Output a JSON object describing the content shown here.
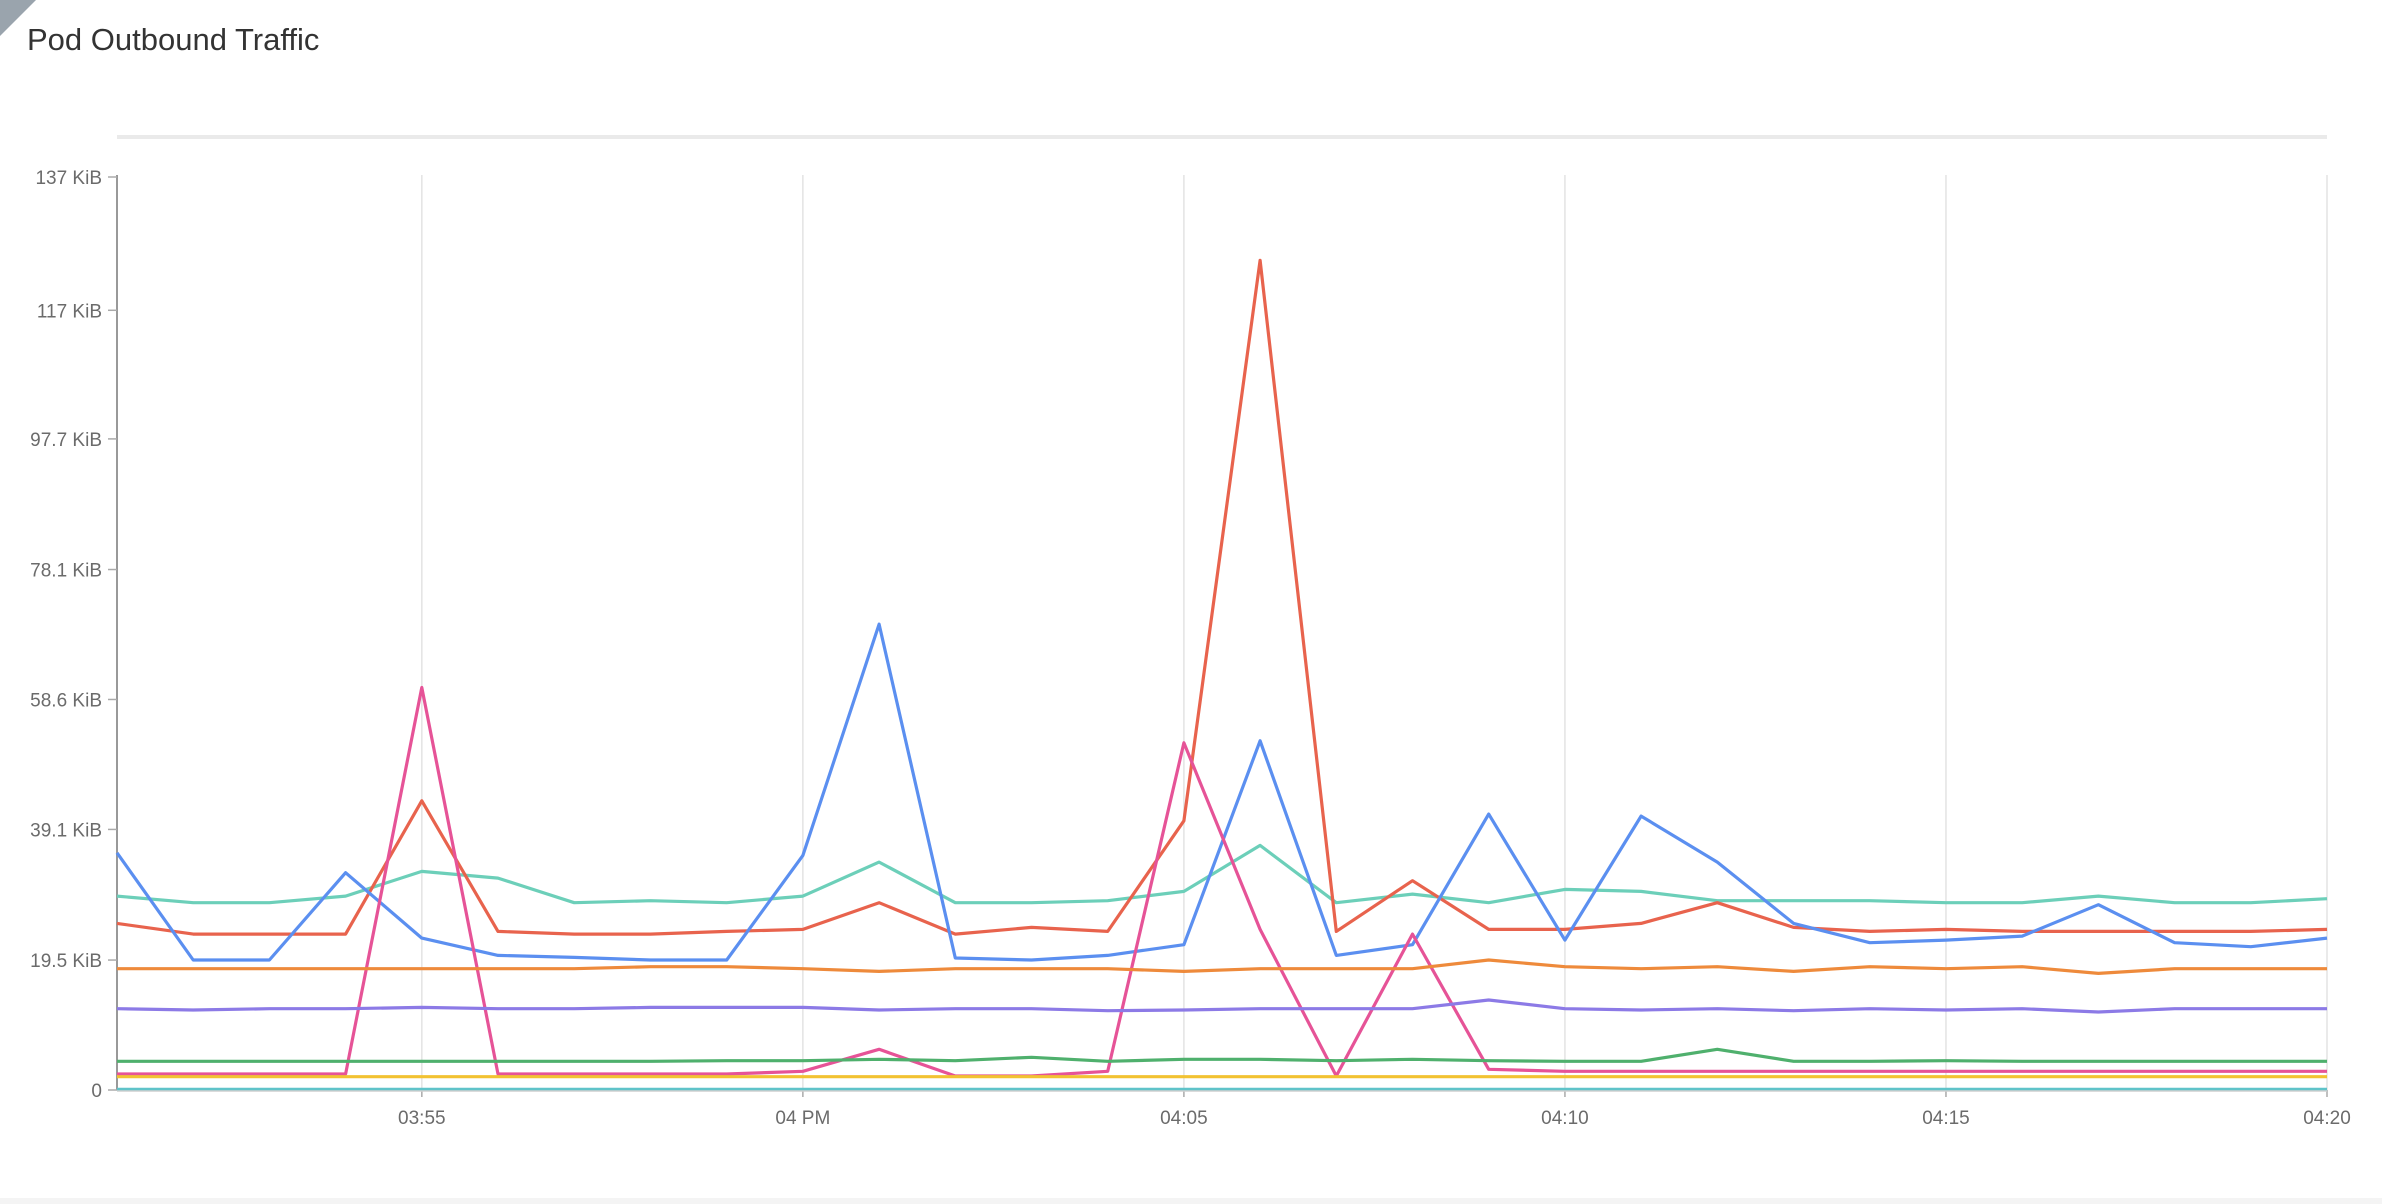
{
  "panel": {
    "title": "Pod Outbound Traffic"
  },
  "chart_data": {
    "type": "line",
    "title": "Pod Outbound Traffic",
    "xlabel": "",
    "ylabel": "",
    "x_unit": "time",
    "y_unit": "KiB",
    "x": [
      "03:51",
      "03:52",
      "03:53",
      "03:54",
      "03:55",
      "03:56",
      "03:57",
      "03:58",
      "03:59",
      "04:00",
      "04:01",
      "04:02",
      "04:03",
      "04:04",
      "04:05",
      "04:06",
      "04:07",
      "04:08",
      "04:09",
      "04:10",
      "04:11",
      "04:12",
      "04:13",
      "04:14",
      "04:15",
      "04:16",
      "04:17",
      "04:18",
      "04:19",
      "04:20"
    ],
    "x_ticks": [
      {
        "x": "03:55",
        "label": "03:55"
      },
      {
        "x": "04:00",
        "label": "04 PM"
      },
      {
        "x": "04:05",
        "label": "04:05"
      },
      {
        "x": "04:10",
        "label": "04:10"
      },
      {
        "x": "04:15",
        "label": "04:15"
      },
      {
        "x": "04:20",
        "label": "04:20"
      }
    ],
    "y_ticks": [
      {
        "value": 0,
        "label": "0"
      },
      {
        "value": 19.5,
        "label": "19.5 KiB"
      },
      {
        "value": 39.1,
        "label": "39.1 KiB"
      },
      {
        "value": 58.6,
        "label": "58.6 KiB"
      },
      {
        "value": 78.1,
        "label": "78.1 KiB"
      },
      {
        "value": 97.7,
        "label": "97.7 KiB"
      },
      {
        "value": 117,
        "label": "117 KiB"
      },
      {
        "value": 137,
        "label": "137 KiB"
      }
    ],
    "ylim": [
      0,
      137
    ],
    "grid": "vertical",
    "legend": "none",
    "series": [
      {
        "color": "#6ccfb9",
        "values": [
          29.1,
          28.1,
          28.1,
          29.1,
          32.8,
          31.8,
          28.1,
          28.4,
          28.1,
          29.1,
          34.2,
          28.1,
          28.1,
          28.4,
          29.8,
          36.7,
          28.1,
          29.4,
          28.1,
          30.1,
          29.8,
          28.4,
          28.4,
          28.4,
          28.1,
          28.1,
          29.1,
          28.1,
          28.1,
          28.7
        ]
      },
      {
        "color": "#e8634d",
        "values": [
          25.0,
          23.4,
          23.4,
          23.4,
          43.4,
          23.8,
          23.4,
          23.4,
          23.8,
          24.1,
          28.1,
          23.4,
          24.4,
          23.8,
          40.4,
          124.5,
          23.8,
          31.4,
          24.1,
          24.1,
          25.0,
          28.1,
          24.4,
          23.8,
          24.1,
          23.8,
          23.8,
          23.8,
          23.8,
          24.1
        ]
      },
      {
        "color": "#5b8ff0",
        "values": [
          35.6,
          19.5,
          19.5,
          32.6,
          22.8,
          20.2,
          19.9,
          19.5,
          19.5,
          35.2,
          69.9,
          19.8,
          19.5,
          20.2,
          21.8,
          52.4,
          20.2,
          21.8,
          41.4,
          22.5,
          41.1,
          34.2,
          25.0,
          22.1,
          22.5,
          23.1,
          27.8,
          22.1,
          21.5,
          22.8
        ]
      },
      {
        "color": "#e65397",
        "values": [
          2.4,
          2.4,
          2.4,
          2.4,
          60.4,
          2.4,
          2.4,
          2.4,
          2.4,
          2.8,
          6.1,
          2.1,
          2.1,
          2.8,
          52.1,
          24.1,
          2.1,
          23.4,
          3.1,
          2.8,
          2.8,
          2.8,
          2.8,
          2.8,
          2.8,
          2.8,
          2.8,
          2.8,
          2.8,
          2.8
        ]
      },
      {
        "color": "#ee8a3b",
        "values": [
          18.2,
          18.2,
          18.2,
          18.2,
          18.2,
          18.2,
          18.2,
          18.5,
          18.5,
          18.2,
          17.8,
          18.2,
          18.2,
          18.2,
          17.8,
          18.2,
          18.2,
          18.2,
          19.5,
          18.5,
          18.2,
          18.5,
          17.8,
          18.5,
          18.2,
          18.5,
          17.5,
          18.2,
          18.2,
          18.2
        ]
      },
      {
        "color": "#8c7ae6",
        "values": [
          12.2,
          12.0,
          12.2,
          12.2,
          12.4,
          12.2,
          12.2,
          12.4,
          12.4,
          12.4,
          12.0,
          12.2,
          12.2,
          11.9,
          12.0,
          12.2,
          12.2,
          12.2,
          13.5,
          12.2,
          12.0,
          12.2,
          11.9,
          12.2,
          12.0,
          12.2,
          11.7,
          12.2,
          12.2,
          12.2
        ]
      },
      {
        "color": "#4fb06d",
        "values": [
          4.3,
          4.3,
          4.3,
          4.3,
          4.3,
          4.3,
          4.3,
          4.3,
          4.4,
          4.4,
          4.6,
          4.4,
          4.9,
          4.3,
          4.6,
          4.6,
          4.4,
          4.6,
          4.4,
          4.3,
          4.3,
          6.1,
          4.3,
          4.3,
          4.4,
          4.3,
          4.3,
          4.3,
          4.3,
          4.3
        ]
      },
      {
        "color": "#f2c232",
        "values": [
          2.0,
          2.0,
          2.0,
          2.0,
          2.0,
          2.0,
          2.0,
          2.0,
          2.0,
          2.0,
          2.0,
          2.0,
          2.0,
          2.0,
          2.0,
          2.0,
          2.0,
          2.0,
          2.0,
          2.0,
          2.0,
          2.0,
          2.0,
          2.0,
          2.0,
          2.0,
          2.0,
          2.0,
          2.0,
          2.0
        ]
      },
      {
        "color": "#5fc3c9",
        "values": [
          0.1,
          0.1,
          0.1,
          0.1,
          0.1,
          0.1,
          0.1,
          0.1,
          0.1,
          0.1,
          0.1,
          0.1,
          0.1,
          0.1,
          0.1,
          0.1,
          0.1,
          0.1,
          0.1,
          0.1,
          0.1,
          0.1,
          0.1,
          0.1,
          0.1,
          0.1,
          0.1,
          0.1,
          0.1,
          0.1
        ]
      }
    ]
  }
}
